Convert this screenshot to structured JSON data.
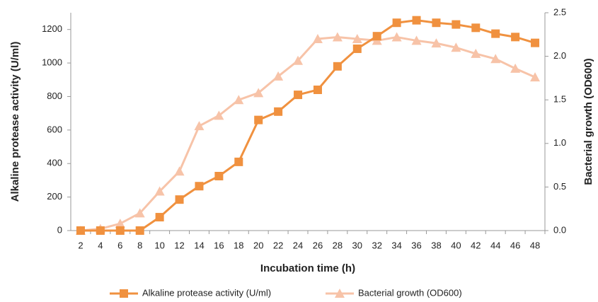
{
  "chart_data": {
    "type": "line",
    "x_label": "Incubation time (h)",
    "y_label": "Alkaline protease activity (U/ml)",
    "y2_label": "Bacterial growth (OD600)",
    "x": [
      2,
      4,
      6,
      8,
      10,
      12,
      14,
      16,
      18,
      20,
      22,
      24,
      26,
      28,
      30,
      32,
      34,
      36,
      38,
      40,
      42,
      44,
      46,
      48
    ],
    "ylim": [
      0,
      1300
    ],
    "yticks": [
      0,
      200,
      400,
      600,
      800,
      1000,
      1200
    ],
    "y2lim": [
      0,
      2.5
    ],
    "y2ticks": [
      {
        "value": 0,
        "label": "0.0"
      },
      0.5,
      {
        "value": 1,
        "label": "1.0"
      },
      1.5,
      {
        "value": 2,
        "label": "2.0"
      },
      2.5
    ],
    "legend": "bottom",
    "series": [
      {
        "name": "Alkaline protease activity (U/ml)",
        "color": "#f0913f",
        "marker": "square",
        "values": [
          0,
          0,
          0,
          0,
          80,
          185,
          265,
          325,
          410,
          660,
          710,
          810,
          840,
          980,
          1085,
          1160,
          1240,
          1255,
          1240,
          1230,
          1210,
          1175,
          1155,
          1120
        ]
      },
      {
        "name": "Bacterial growth (OD600)",
        "color": "#f7c3a8",
        "marker": "triangle",
        "axis": "y2",
        "values": [
          0,
          0.02,
          0.08,
          0.2,
          0.45,
          0.68,
          1.2,
          1.32,
          1.5,
          1.58,
          1.77,
          1.95,
          2.2,
          2.22,
          2.2,
          2.18,
          2.22,
          2.18,
          2.15,
          2.1,
          2.03,
          1.97,
          1.86,
          1.76
        ]
      }
    ]
  }
}
